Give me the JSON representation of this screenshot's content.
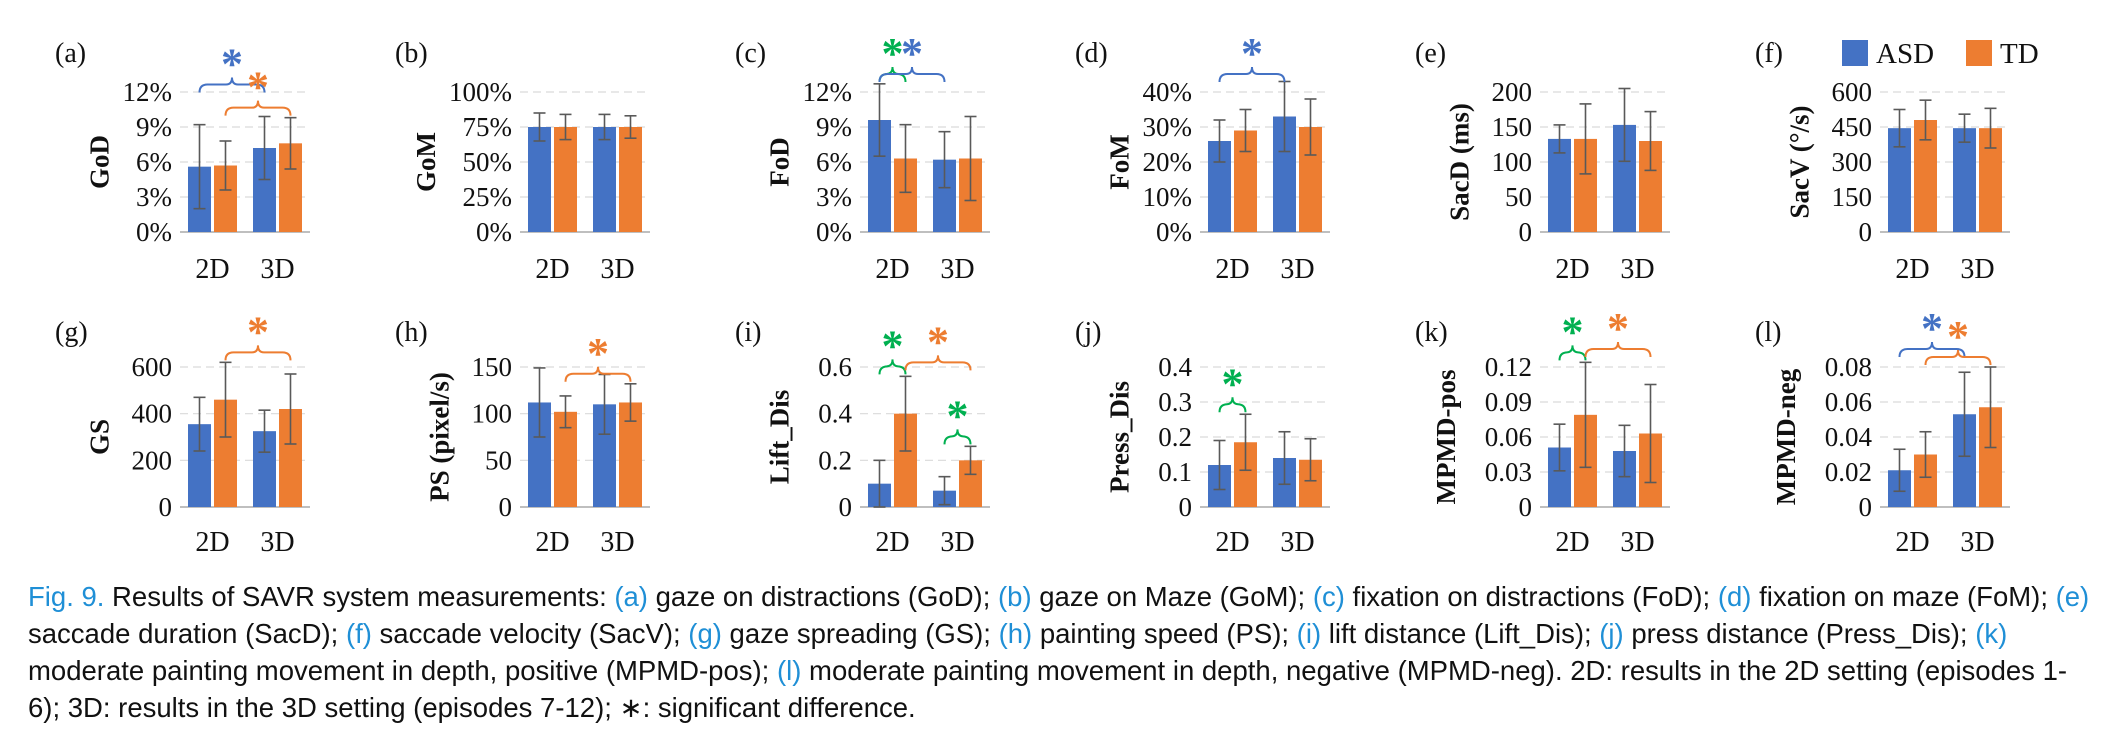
{
  "colors": {
    "ASD": "#4472c4",
    "TD": "#ed7d31",
    "sig_blue": "#4472c4",
    "sig_orange": "#ed7d31",
    "sig_green": "#00b050",
    "caption_accent": "#1f8fd6",
    "grid": "#d9d9d9",
    "axis": "#bfbfbf",
    "error_bar": "#595959"
  },
  "legend": [
    {
      "label": "ASD",
      "color": "#4472c4"
    },
    {
      "label": "TD",
      "color": "#ed7d31"
    }
  ],
  "significance_symbol": "*",
  "chart_data": [
    {
      "panel": "(a)",
      "type": "bar",
      "ylabel": "GoD",
      "categories": [
        "2D",
        "3D"
      ],
      "yticks": [
        "0%",
        "3%",
        "6%",
        "9%",
        "12%"
      ],
      "ylim": [
        0,
        12
      ],
      "grid": true,
      "series": [
        {
          "name": "ASD",
          "values": [
            5.6,
            7.2
          ],
          "errors": [
            3.6,
            2.7
          ]
        },
        {
          "name": "TD",
          "values": [
            5.7,
            7.6
          ],
          "errors": [
            2.1,
            2.2
          ]
        }
      ],
      "significance": [
        {
          "from": "2D.ASD",
          "to": "3D.ASD",
          "color": "blue",
          "label": "*"
        },
        {
          "from": "2D.TD",
          "to": "3D.TD",
          "color": "orange",
          "label": "*"
        }
      ]
    },
    {
      "panel": "(b)",
      "type": "bar",
      "ylabel": "GoM",
      "categories": [
        "2D",
        "3D"
      ],
      "yticks": [
        "0%",
        "25%",
        "50%",
        "75%",
        "100%"
      ],
      "ylim": [
        0,
        100
      ],
      "grid": true,
      "series": [
        {
          "name": "ASD",
          "values": [
            75,
            75
          ],
          "errors": [
            10,
            9
          ]
        },
        {
          "name": "TD",
          "values": [
            75,
            75
          ],
          "errors": [
            9,
            8
          ]
        }
      ],
      "significance": []
    },
    {
      "panel": "(c)",
      "type": "bar",
      "ylabel": "FoD",
      "categories": [
        "2D",
        "3D"
      ],
      "yticks": [
        "0%",
        "3%",
        "6%",
        "9%",
        "12%"
      ],
      "ylim": [
        0,
        12
      ],
      "grid": true,
      "series": [
        {
          "name": "ASD",
          "values": [
            9.6,
            6.2
          ],
          "errors": [
            3.1,
            2.4
          ]
        },
        {
          "name": "TD",
          "values": [
            6.3,
            6.3
          ],
          "errors": [
            2.9,
            3.6
          ]
        }
      ],
      "significance": [
        {
          "from": "2D.ASD",
          "to": "2D.TD",
          "color": "green",
          "label": "*"
        },
        {
          "from": "2D.ASD",
          "to": "3D.ASD",
          "color": "blue",
          "label": "*"
        }
      ]
    },
    {
      "panel": "(d)",
      "type": "bar",
      "ylabel": "FoM",
      "categories": [
        "2D",
        "3D"
      ],
      "yticks": [
        "0%",
        "10%",
        "20%",
        "30%",
        "40%"
      ],
      "ylim": [
        0,
        40
      ],
      "grid": true,
      "series": [
        {
          "name": "ASD",
          "values": [
            26,
            33
          ],
          "errors": [
            6,
            10
          ]
        },
        {
          "name": "TD",
          "values": [
            29,
            30
          ],
          "errors": [
            6,
            8
          ]
        }
      ],
      "significance": [
        {
          "from": "2D.ASD",
          "to": "3D.ASD",
          "color": "blue",
          "label": "*"
        }
      ]
    },
    {
      "panel": "(e)",
      "type": "bar",
      "ylabel": "SacD (ms)",
      "categories": [
        "2D",
        "3D"
      ],
      "yticks": [
        "0",
        "50",
        "100",
        "150",
        "200"
      ],
      "ylim": [
        0,
        200
      ],
      "grid": true,
      "series": [
        {
          "name": "ASD",
          "values": [
            133,
            153
          ],
          "errors": [
            20,
            52
          ]
        },
        {
          "name": "TD",
          "values": [
            133,
            130
          ],
          "errors": [
            50,
            42
          ]
        }
      ],
      "significance": []
    },
    {
      "panel": "(f)",
      "type": "bar",
      "ylabel": "SacV (°/s)",
      "categories": [
        "2D",
        "3D"
      ],
      "yticks": [
        "0",
        "150",
        "300",
        "450",
        "600"
      ],
      "ylim": [
        0,
        600
      ],
      "grid": true,
      "series": [
        {
          "name": "ASD",
          "values": [
            445,
            445
          ],
          "errors": [
            80,
            60
          ]
        },
        {
          "name": "TD",
          "values": [
            480,
            445
          ],
          "errors": [
            85,
            85
          ]
        }
      ],
      "significance": []
    },
    {
      "panel": "(g)",
      "type": "bar",
      "ylabel": "GS",
      "categories": [
        "2D",
        "3D"
      ],
      "yticks": [
        "0",
        "200",
        "400",
        "600"
      ],
      "ylim": [
        0,
        600
      ],
      "grid": true,
      "series": [
        {
          "name": "ASD",
          "values": [
            355,
            325
          ],
          "errors": [
            115,
            90
          ]
        },
        {
          "name": "TD",
          "values": [
            460,
            420
          ],
          "errors": [
            160,
            150
          ]
        }
      ],
      "significance": [
        {
          "from": "2D.TD",
          "to": "3D.TD",
          "color": "orange",
          "label": "*"
        }
      ]
    },
    {
      "panel": "(h)",
      "type": "bar",
      "ylabel": "PS (pixel/s)",
      "categories": [
        "2D",
        "3D"
      ],
      "yticks": [
        "0",
        "50",
        "100",
        "150"
      ],
      "ylim": [
        0,
        150
      ],
      "grid": true,
      "series": [
        {
          "name": "ASD",
          "values": [
            112,
            110
          ],
          "errors": [
            37,
            32
          ]
        },
        {
          "name": "TD",
          "values": [
            102,
            112
          ],
          "errors": [
            17,
            20
          ]
        }
      ],
      "significance": [
        {
          "from": "2D.TD",
          "to": "3D.TD",
          "color": "orange",
          "label": "*"
        }
      ]
    },
    {
      "panel": "(i)",
      "type": "bar",
      "ylabel": "Lift_Dis",
      "categories": [
        "2D",
        "3D"
      ],
      "yticks": [
        "0",
        "0.2",
        "0.4",
        "0.6"
      ],
      "ylim": [
        0,
        0.6
      ],
      "grid": true,
      "series": [
        {
          "name": "ASD",
          "values": [
            0.1,
            0.07
          ],
          "errors": [
            0.1,
            0.06
          ]
        },
        {
          "name": "TD",
          "values": [
            0.4,
            0.2
          ],
          "errors": [
            0.16,
            0.06
          ]
        }
      ],
      "significance": [
        {
          "from": "2D.ASD",
          "to": "2D.TD",
          "color": "green",
          "label": "*"
        },
        {
          "from": "3D.ASD",
          "to": "3D.TD",
          "color": "green",
          "label": "*"
        },
        {
          "from": "2D.TD",
          "to": "3D.TD",
          "color": "orange",
          "label": "*"
        }
      ]
    },
    {
      "panel": "(j)",
      "type": "bar",
      "ylabel": "Press_Dis",
      "categories": [
        "2D",
        "3D"
      ],
      "yticks": [
        "0",
        "0.1",
        "0.2",
        "0.3",
        "0.4"
      ],
      "ylim": [
        0,
        0.4
      ],
      "grid": true,
      "series": [
        {
          "name": "ASD",
          "values": [
            0.12,
            0.14
          ],
          "errors": [
            0.07,
            0.075
          ]
        },
        {
          "name": "TD",
          "values": [
            0.185,
            0.135
          ],
          "errors": [
            0.08,
            0.06
          ]
        }
      ],
      "significance": [
        {
          "from": "2D.ASD",
          "to": "2D.TD",
          "color": "green",
          "label": "*"
        }
      ]
    },
    {
      "panel": "(k)",
      "type": "bar",
      "ylabel": "MPMD-pos",
      "categories": [
        "2D",
        "3D"
      ],
      "yticks": [
        "0",
        "0.03",
        "0.06",
        "0.09",
        "0.12"
      ],
      "ylim": [
        0,
        0.12
      ],
      "grid": true,
      "series": [
        {
          "name": "ASD",
          "values": [
            0.051,
            0.048
          ],
          "errors": [
            0.02,
            0.022
          ]
        },
        {
          "name": "TD",
          "values": [
            0.079,
            0.063
          ],
          "errors": [
            0.045,
            0.042
          ]
        }
      ],
      "significance": [
        {
          "from": "2D.ASD",
          "to": "2D.TD",
          "color": "green",
          "label": "*"
        },
        {
          "from": "2D.TD",
          "to": "3D.TD",
          "color": "orange",
          "label": "*"
        }
      ]
    },
    {
      "panel": "(l)",
      "type": "bar",
      "ylabel": "MPMD-neg",
      "categories": [
        "2D",
        "3D"
      ],
      "yticks": [
        "0",
        "0.02",
        "0.04",
        "0.06",
        "0.08"
      ],
      "ylim": [
        0,
        0.08
      ],
      "grid": true,
      "series": [
        {
          "name": "ASD",
          "values": [
            0.021,
            0.053
          ],
          "errors": [
            0.012,
            0.024
          ]
        },
        {
          "name": "TD",
          "values": [
            0.03,
            0.057
          ],
          "errors": [
            0.013,
            0.023
          ]
        }
      ],
      "significance": [
        {
          "from": "2D.ASD",
          "to": "3D.ASD",
          "color": "blue",
          "label": "*"
        },
        {
          "from": "2D.TD",
          "to": "3D.TD",
          "color": "orange",
          "label": "*"
        }
      ]
    }
  ],
  "caption": {
    "figure_label": "Fig. 9.",
    "intro": " Results of SAVR system measurements: ",
    "items": [
      {
        "key": "(a)",
        "text": " gaze on distractions (GoD); "
      },
      {
        "key": "(b)",
        "text": " gaze on Maze (GoM); "
      },
      {
        "key": "(c)",
        "text": " fixation on distractions (FoD); "
      },
      {
        "key": "(d)",
        "text": " fixation on maze (FoM); "
      },
      {
        "key": "(e)",
        "text": " saccade duration (SacD); "
      },
      {
        "key": "(f)",
        "text": " saccade velocity (SacV); "
      },
      {
        "key": "(g)",
        "text": " gaze spreading (GS); "
      },
      {
        "key": "(h)",
        "text": " painting speed (PS); "
      },
      {
        "key": "(i)",
        "text": " lift distance (Lift_Dis); "
      },
      {
        "key": "(j)",
        "text": " press distance (Press_Dis); "
      },
      {
        "key": "(k)",
        "text": " moderate painting movement in depth, positive (MPMD-pos); "
      },
      {
        "key": "(l)",
        "text": " moderate painting movement in depth, negative (MPMD-neg). "
      }
    ],
    "outro": "2D: results in the 2D setting (episodes 1-6); 3D: results in the 3D setting (episodes 7-12); ∗: significant difference."
  }
}
